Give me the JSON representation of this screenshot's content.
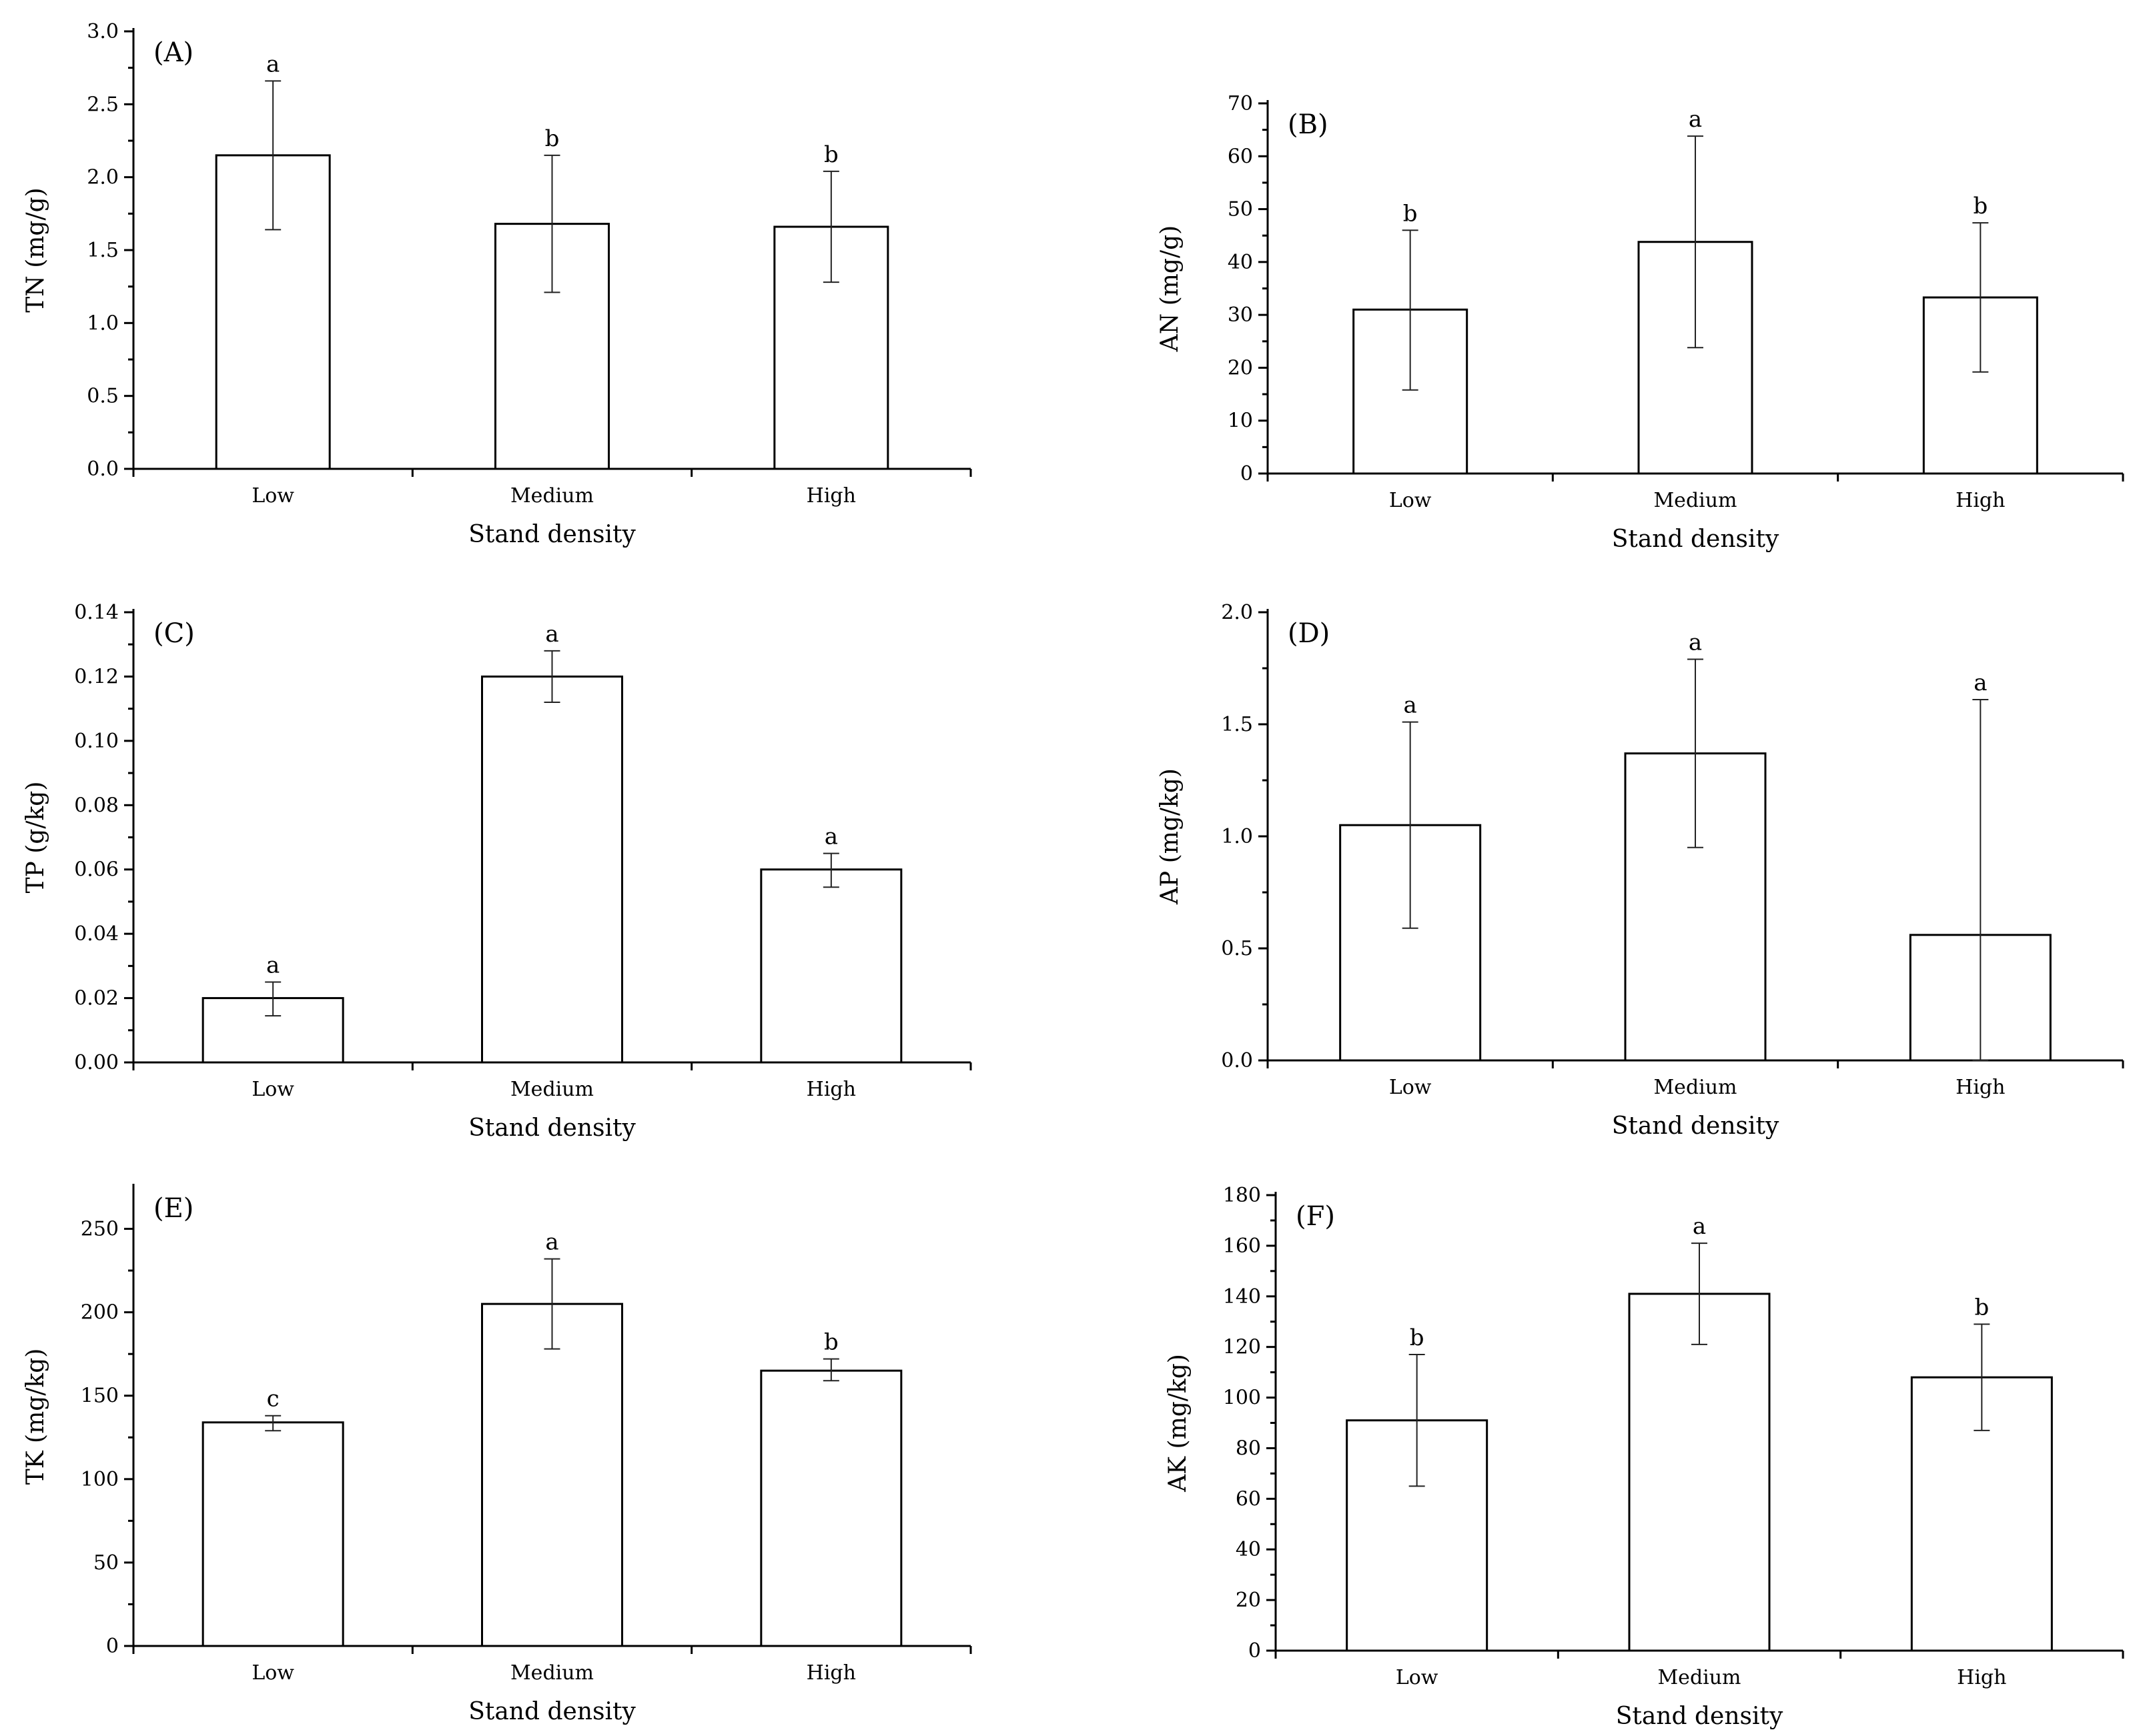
{
  "figure": {
    "type": "multi-panel bar chart"
  },
  "chart_data": [
    {
      "type": "bar",
      "panel": "(A)",
      "categories": [
        "Low",
        "Medium",
        "High"
      ],
      "values": [
        2.15,
        1.68,
        1.66
      ],
      "error_upper": [
        2.66,
        2.15,
        2.04
      ],
      "error_lower": [
        1.64,
        1.21,
        1.28
      ],
      "significance": [
        "a",
        "b",
        "b"
      ],
      "xlabel": "Stand density",
      "ylabel": "TN (mg/g)",
      "ylim": [
        0,
        3.0
      ],
      "yticks": [
        0.0,
        0.5,
        1.0,
        1.5,
        2.0,
        2.5,
        3.0
      ],
      "ytick_labels": [
        "0.0",
        "0.5",
        "1.0",
        "1.5",
        "2.0",
        "2.5",
        "3.0"
      ]
    },
    {
      "type": "bar",
      "panel": "(B)",
      "categories": [
        "Low",
        "Medium",
        "High"
      ],
      "values": [
        31,
        43.8,
        33.3
      ],
      "error_upper": [
        46,
        63.8,
        47.4
      ],
      "error_lower": [
        15.8,
        23.8,
        19.2
      ],
      "significance": [
        "b",
        "a",
        "b"
      ],
      "xlabel": "Stand density",
      "ylabel": "AN (mg/g)",
      "ylim": [
        0,
        70
      ],
      "yticks": [
        0,
        10,
        20,
        30,
        40,
        50,
        60,
        70
      ],
      "ytick_labels": [
        "0",
        "10",
        "20",
        "30",
        "40",
        "50",
        "60",
        "70"
      ]
    },
    {
      "type": "bar",
      "panel": "(C)",
      "categories": [
        "Low",
        "Medium",
        "High"
      ],
      "values": [
        0.02,
        0.12,
        0.06
      ],
      "error_upper": [
        0.025,
        0.128,
        0.065
      ],
      "error_lower": [
        0.0145,
        0.112,
        0.0545
      ],
      "significance": [
        "a",
        "a",
        "a"
      ],
      "xlabel": "Stand density",
      "ylabel": "TP (g/kg)",
      "ylim": [
        0,
        0.14
      ],
      "yticks": [
        0.0,
        0.02,
        0.04,
        0.06,
        0.08,
        0.1,
        0.12,
        0.14
      ],
      "ytick_labels": [
        "0.00",
        "0.02",
        "0.04",
        "0.06",
        "0.08",
        "0.10",
        "0.12",
        "0.14"
      ]
    },
    {
      "type": "bar",
      "panel": "(D)",
      "categories": [
        "Low",
        "Medium",
        "High"
      ],
      "values": [
        1.05,
        1.37,
        0.56
      ],
      "error_upper": [
        1.51,
        1.79,
        1.61
      ],
      "error_lower": [
        0.59,
        0.95,
        0.0
      ],
      "significance": [
        "a",
        "a",
        "a"
      ],
      "xlabel": "Stand density",
      "ylabel": "AP (mg/kg)",
      "ylim": [
        0,
        2.0
      ],
      "yticks": [
        0.0,
        0.5,
        1.0,
        1.5,
        2.0
      ],
      "ytick_labels": [
        "0.0",
        "0.5",
        "1.0",
        "1.5",
        "2.0"
      ]
    },
    {
      "type": "bar",
      "panel": "(E)",
      "categories": [
        "Low",
        "Medium",
        "High"
      ],
      "values": [
        134,
        205,
        165
      ],
      "error_upper": [
        138,
        232,
        172
      ],
      "error_lower": [
        129,
        178,
        159
      ],
      "significance": [
        "c",
        "a",
        "b"
      ],
      "xlabel": "Stand density",
      "ylabel": "TK (mg/kg)",
      "ylim": [
        0,
        275
      ],
      "yticks": [
        0,
        50,
        100,
        150,
        200,
        250
      ],
      "ytick_labels": [
        "0",
        "50",
        "100",
        "150",
        "200",
        "250"
      ]
    },
    {
      "type": "bar",
      "panel": "(F)",
      "categories": [
        "Low",
        "Medium",
        "High"
      ],
      "values": [
        91,
        141,
        108
      ],
      "error_upper": [
        117,
        161,
        129
      ],
      "error_lower": [
        65,
        121,
        87
      ],
      "significance": [
        "b",
        "a",
        "b"
      ],
      "xlabel": "Stand density",
      "ylabel": "AK (mg/kg)",
      "ylim": [
        0,
        180
      ],
      "yticks": [
        0,
        20,
        40,
        60,
        80,
        100,
        120,
        140,
        160,
        180
      ],
      "ytick_labels": [
        "0",
        "20",
        "40",
        "60",
        "80",
        "100",
        "120",
        "140",
        "160",
        "180"
      ]
    }
  ]
}
